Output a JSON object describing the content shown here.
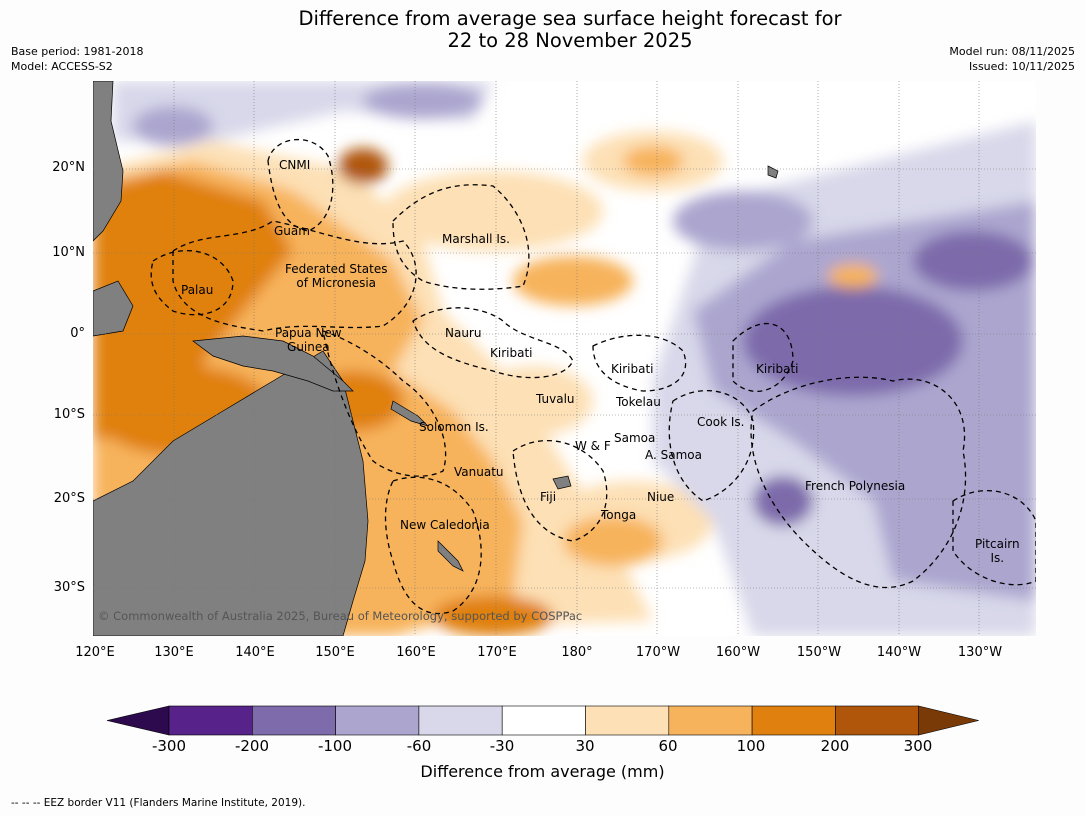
{
  "title": {
    "line1": "Difference from average sea surface height forecast for",
    "line2": "22 to 28 November 2025"
  },
  "meta": {
    "base_period": "Base period: 1981-2018",
    "model": "Model: ACCESS-S2",
    "model_run": "Model run: 08/11/2025",
    "issued": "Issued: 10/11/2025"
  },
  "axes": {
    "lat_ticks": [
      "20°N",
      "10°N",
      "0°",
      "10°S",
      "20°S",
      "30°S"
    ],
    "lon_ticks": [
      "120°E",
      "130°E",
      "140°E",
      "150°E",
      "160°E",
      "170°E",
      "180°",
      "170°W",
      "160°W",
      "150°W",
      "140°W",
      "130°W"
    ]
  },
  "places": {
    "cnmi": "CNMI",
    "guam": "Guam",
    "marshall": "Marshall Is.",
    "fsm1": "Federated States",
    "fsm2": "of Micronesia",
    "palau": "Palau",
    "nauru": "Nauru",
    "png1": "Papua New",
    "png2": "Guinea",
    "kiribati_w": "Kiribati",
    "kiribati_c": "Kiribati",
    "kiribati_e": "Kiribati",
    "tuvalu": "Tuvalu",
    "tokelau": "Tokelau",
    "cook": "Cook Is.",
    "solomon": "Solomon Is.",
    "wf": "W & F",
    "samoa": "Samoa",
    "asamoa": "A. Samoa",
    "vanuatu": "Vanuatu",
    "fiji": "Fiji",
    "niue": "Niue",
    "frpoly": "French Polynesia",
    "tonga": "Tonga",
    "newcal": "New Caledonia",
    "pitcairn1": "Pitcairn",
    "pitcairn2": "Is."
  },
  "copyright": "© Commonwealth of Australia 2025, Bureau of Meteorology, supported by COSPPac",
  "colorbar": {
    "title": "Difference from average (mm)",
    "labels": [
      "-300",
      "-200",
      "-100",
      "-60",
      "-30",
      "30",
      "60",
      "100",
      "200",
      "300"
    ],
    "colors": {
      "under": "#2d0a4e",
      "bins": [
        "#57238a",
        "#7d6bab",
        "#aca6cf",
        "#d8d8ea",
        "#ffffff",
        "#fde0b5",
        "#f7b35c",
        "#e0800f",
        "#b0560b"
      ],
      "over": "#7a3a08"
    }
  },
  "map_colors": {
    "land": "#808080",
    "ocean_base": "#ffffff"
  },
  "footnote": "--  --  -- EEZ border V11 (Flanders Marine Institute, 2019)."
}
